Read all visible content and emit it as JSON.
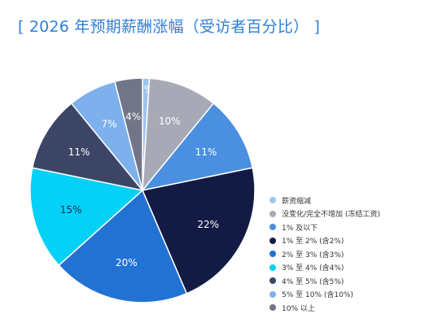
{
  "chart_data": {
    "type": "pie",
    "title": "[ 2026 年预期薪酬涨幅（受访者百分比） ]",
    "start_angle_deg": 0,
    "direction": "clockwise",
    "legend_position": "bottom-right",
    "slices": [
      {
        "label": "薪资缩减",
        "value": 1,
        "value_label": "1%",
        "color": "#9ec4ec",
        "label_color": "#ffffff"
      },
      {
        "label": "没变化/完全不增加 (冻结工资)",
        "value": 10,
        "value_label": "10%",
        "color": "#a7a9b6",
        "label_color": "#ffffff"
      },
      {
        "label": "1% 及以下",
        "value": 11,
        "value_label": "11%",
        "color": "#4a8fe0",
        "label_color": "#ffffff"
      },
      {
        "label": "1% 至 2% (含2%)",
        "value": 22,
        "value_label": "22%",
        "color": "#131b45",
        "label_color": "#ffffff"
      },
      {
        "label": "2% 至 3% (含3%)",
        "value": 20,
        "value_label": "20%",
        "color": "#2272d4",
        "label_color": "#ffffff"
      },
      {
        "label": "3% 至 4% (含4%)",
        "value": 15,
        "value_label": "15%",
        "color": "#05d0f5",
        "label_color": "#1d2a55"
      },
      {
        "label": "4% 至 5% (含5%)",
        "value": 11,
        "value_label": "11%",
        "color": "#3c4566",
        "label_color": "#ffffff"
      },
      {
        "label": "5% 至 10% (含10%)",
        "value": 7,
        "value_label": "7%",
        "color": "#7db0ec",
        "label_color": "#ffffff"
      },
      {
        "label": "10% 以上",
        "value": 4,
        "value_label": "4%",
        "color": "#717587",
        "label_color": "#ffffff"
      }
    ]
  }
}
